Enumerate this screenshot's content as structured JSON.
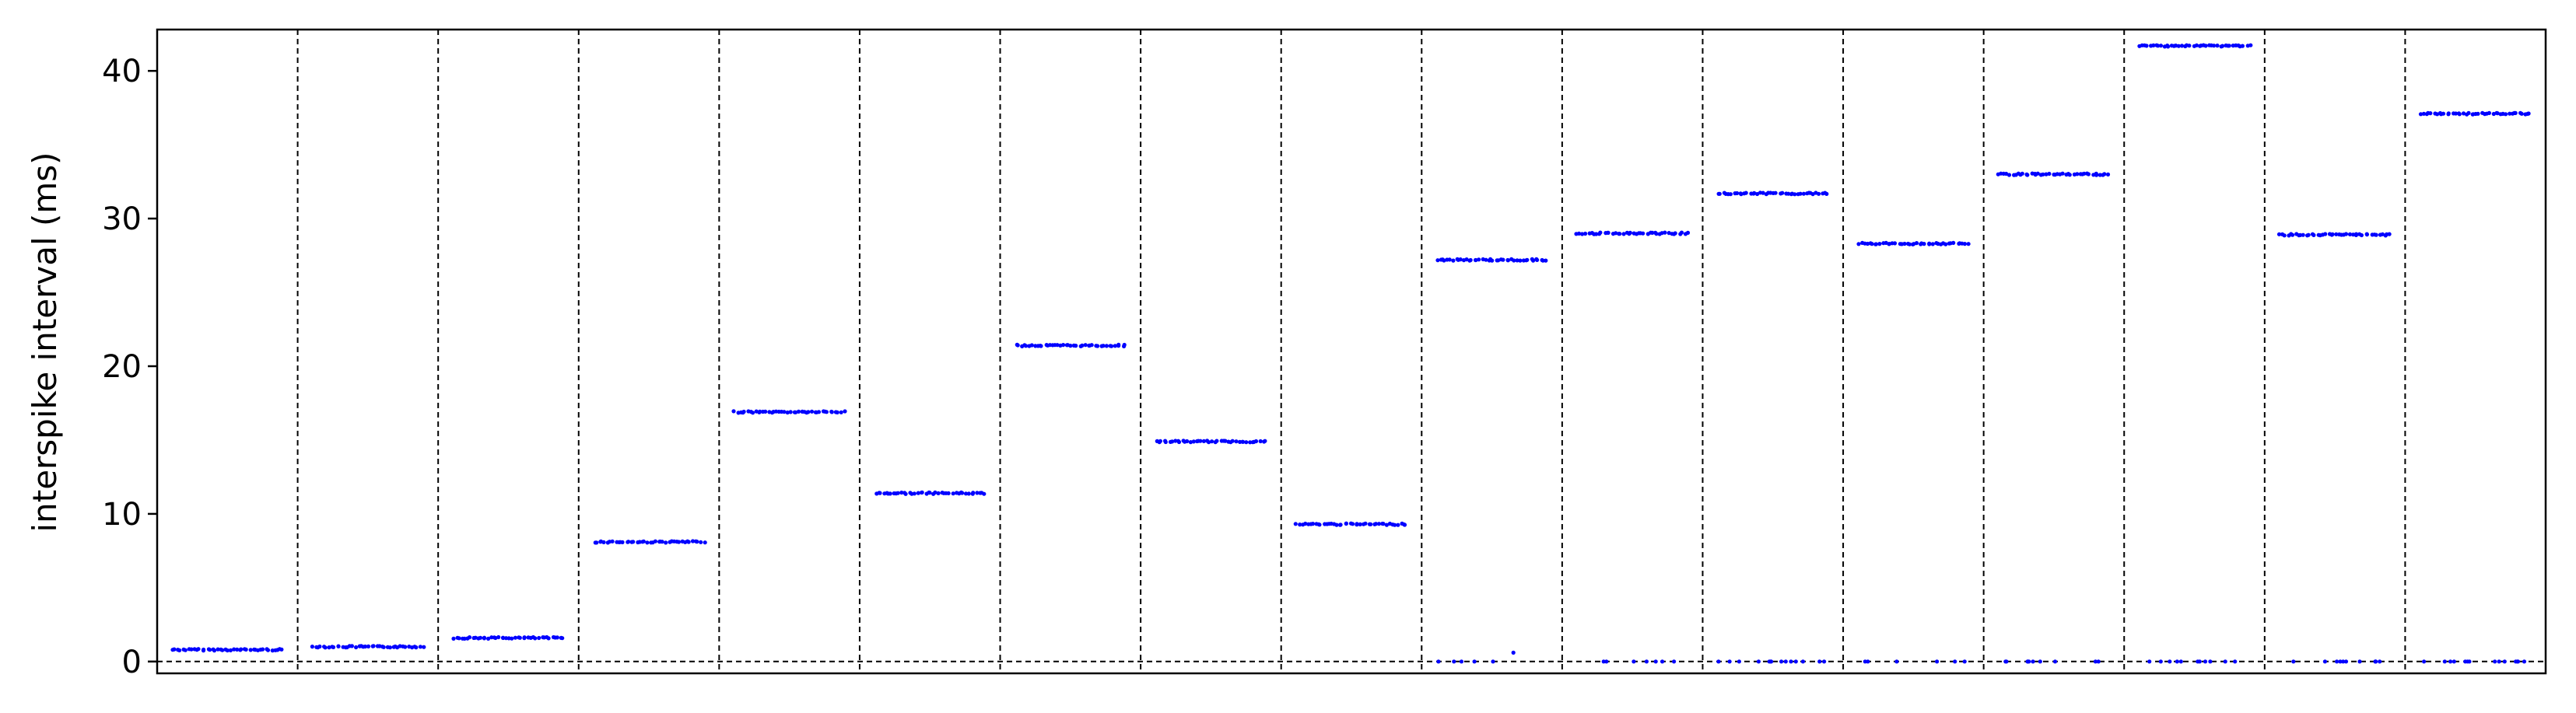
{
  "chart_data": {
    "type": "scatter",
    "title": "",
    "xlabel": "",
    "ylabel": "interspike interval (ms)",
    "ylim": [
      -0.8,
      42.8
    ],
    "yticks": [
      0,
      10,
      20,
      30,
      40
    ],
    "grid": false,
    "legend": "none",
    "colors": {
      "points": "#0000ff",
      "separators": "#000000",
      "zero_line": "#000000",
      "axes": "#000000"
    },
    "x_axis_ticks_visible": false,
    "segments": [
      {
        "ids": [
          0.8
        ]
      },
      {
        "ids": [
          1.0
        ]
      },
      {
        "ids": [
          1.6
        ]
      },
      {
        "ids": [
          8.1
        ]
      },
      {
        "ids": [
          16.9
        ]
      },
      {
        "ids": [
          11.4
        ]
      },
      {
        "ids": [
          21.4
        ]
      },
      {
        "ids": [
          14.9
        ]
      },
      {
        "ids": [
          9.3
        ]
      },
      {
        "ids": [
          27.2,
          0.0,
          0.6
        ]
      },
      {
        "ids": [
          29.0,
          0.0
        ]
      },
      {
        "ids": [
          31.7,
          0.0
        ]
      },
      {
        "ids": [
          28.3,
          0.0
        ]
      },
      {
        "ids": [
          33.0,
          0.0
        ]
      },
      {
        "ids": [
          41.7,
          0.0
        ]
      },
      {
        "ids": [
          28.9,
          0.0
        ]
      },
      {
        "ids": [
          37.1,
          0.0
        ]
      }
    ]
  }
}
